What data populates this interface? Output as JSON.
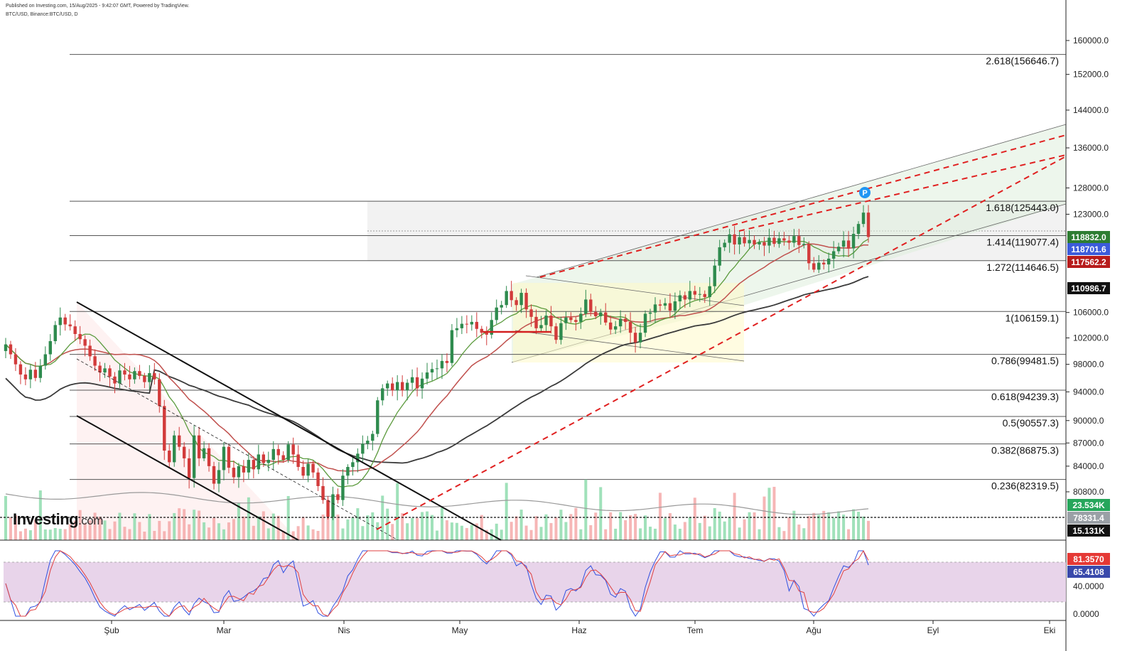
{
  "header": {
    "published": "Published on Investing.com, 15/Aug/2025 - 9:42:07 GMT, Powered by TradingView.",
    "symbol": "BTC/USD, Binance:BTC/USD, D"
  },
  "logo": {
    "name": "Investing",
    "suffix": ".com"
  },
  "colors": {
    "up": "#2e8b4e",
    "down": "#d23b3b",
    "ma_fast": "#5b9a3c",
    "ma_mid": "#c0504d",
    "ma_slow": "#3a3a3a",
    "trend": "#e02020",
    "stoch_k": "#3050e0",
    "stoch_d": "#e04040",
    "stoch_band": "#e6cfe8",
    "channel": "#e8f1e0",
    "fibzone": "#ebebeb"
  },
  "chart_data": {
    "type": "candlestick",
    "title": "",
    "x_months": [
      "Şub",
      "Mar",
      "Nis",
      "May",
      "Haz",
      "Tem",
      "Ağu",
      "Eyl",
      "Eki"
    ],
    "y_ticks": [
      "160000.0",
      "152000.0",
      "144000.0",
      "136000.0",
      "128000.0",
      "123000.0",
      "106000.0",
      "102000.0",
      "98000.0",
      "94000.0",
      "90000.0",
      "87000.0",
      "84000.0",
      "80800.0"
    ],
    "y_scale": "log",
    "fib_levels": [
      {
        "ratio": "2.618",
        "value": 156646.7,
        "label": "2.618(156646.7)"
      },
      {
        "ratio": "1.618",
        "value": 125443.0,
        "label": "1.618(125443.0)"
      },
      {
        "ratio": "1.414",
        "value": 119077.4,
        "label": "1.414(119077.4)"
      },
      {
        "ratio": "1.272",
        "value": 114646.5,
        "label": "1.272(114646.5)"
      },
      {
        "ratio": "1",
        "value": 106159.1,
        "label": "1(106159.1)"
      },
      {
        "ratio": "0.786",
        "value": 99481.5,
        "label": "0.786(99481.5)"
      },
      {
        "ratio": "0.618",
        "value": 94239.3,
        "label": "0.618(94239.3)"
      },
      {
        "ratio": "0.5",
        "value": 90557.3,
        "label": "0.5(90557.3)"
      },
      {
        "ratio": "0.382",
        "value": 86875.3,
        "label": "0.382(86875.3)"
      },
      {
        "ratio": "0.236",
        "value": 82319.5,
        "label": "0.236(82319.5)"
      }
    ],
    "price_badges": [
      {
        "label": "118832.0",
        "color": "#2e7d32"
      },
      {
        "label": "118701.6",
        "color": "#3b5bdb"
      },
      {
        "label": "117562.2",
        "color": "#b71c1c"
      },
      {
        "label": "110986.7",
        "color": "#111111"
      }
    ],
    "volume_badges": [
      {
        "label": "23.534K",
        "color": "#26a65b"
      },
      {
        "label": "78331.4",
        "color": "#9aa0a6"
      },
      {
        "label": "15.131K",
        "color": "#111111"
      }
    ],
    "stoch": {
      "ticks": [
        "40.0000",
        "0.0000"
      ],
      "badges": [
        {
          "label": "81.3570",
          "color": "#e53935"
        },
        {
          "label": "65.4108",
          "color": "#3949ab"
        }
      ]
    },
    "closes_approx": [
      101000,
      99500,
      98000,
      96500,
      95800,
      97200,
      96000,
      97800,
      99500,
      101500,
      104000,
      105200,
      104100,
      103800,
      102600,
      101800,
      100800,
      99200,
      97800,
      96800,
      97400,
      96200,
      95200,
      97100,
      96500,
      95800,
      97000,
      96300,
      95400,
      96700,
      95800,
      92000,
      86000,
      84500,
      88000,
      86500,
      85000,
      82500,
      88000,
      85000,
      86300,
      84000,
      81800,
      83500,
      86500,
      83800,
      82600,
      84000,
      83200,
      84800,
      83600,
      85500,
      84400,
      84800,
      86200,
      85400,
      84800,
      86800,
      85500,
      83900,
      82800,
      84300,
      83200,
      81500,
      79800,
      77800,
      80500,
      79800,
      82800,
      83900,
      84500,
      85600,
      86900,
      87300,
      88200,
      92800,
      94500,
      95200,
      94200,
      95400,
      94200,
      95300,
      96100,
      94500,
      95900,
      96800,
      97300,
      97400,
      98500,
      98200,
      103200,
      103500,
      104200,
      104100,
      104500,
      103400,
      102800,
      102500,
      104800,
      106800,
      107200,
      109500,
      108000,
      107200,
      109200,
      106500,
      105300,
      103500,
      104000,
      105500,
      103800,
      101700,
      104300,
      105200,
      104800,
      104500,
      105800,
      108100,
      106100,
      105400,
      106000,
      104400,
      103300,
      103800,
      105000,
      104500,
      102800,
      101300,
      102800,
      105800,
      106000,
      107300,
      107100,
      107500,
      106300,
      107800,
      108800,
      108100,
      109500,
      108900,
      109000,
      108500,
      110300,
      113800,
      117000,
      117800,
      119300,
      117500,
      118800,
      117700,
      118300,
      117500,
      117900,
      117300,
      118700,
      117600,
      118600,
      118200,
      117800,
      119000,
      117400,
      117600,
      114200,
      113100,
      114300,
      114000,
      115000,
      116300,
      117100,
      118200,
      116800,
      119400,
      121200,
      123300,
      118832
    ]
  }
}
